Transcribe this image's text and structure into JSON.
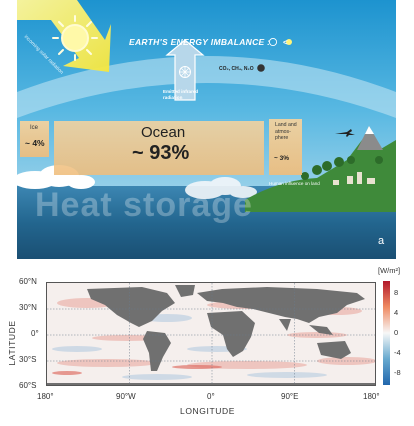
{
  "illustration": {
    "sun_text": "incoming solar radiation",
    "imbalance_title": "EARTH'S ENERGY IMBALANCE :",
    "imbalance_sign": "<",
    "emitted_label": "Emitted infrared radiation",
    "gases": "CO₂, CH₄, N₂O",
    "ice": {
      "label": "Ice",
      "percent": "~ 4%"
    },
    "ocean": {
      "label": "Ocean",
      "percent": "~ 93%"
    },
    "land": {
      "label": "Land and atmos-phere",
      "percent": "~ 3%"
    },
    "human_influence": "Human influence on land",
    "heat_storage": "Heat storage",
    "panel_letter": "a",
    "colors": {
      "sky": "#2aa6d8",
      "ocean_deep": "#1d5c86",
      "storage_fill": "#f3c98f",
      "sun": "#fff27a"
    }
  },
  "map": {
    "y_axis_label": "LATITUDE",
    "x_axis_label": "LONGITUDE",
    "y_ticks": [
      "60°N",
      "30°N",
      "0°",
      "30°S",
      "60°S"
    ],
    "x_ticks": [
      "180°",
      "90°W",
      "0°",
      "90°E",
      "180°"
    ],
    "colorbar": {
      "unit": "[W/m²]",
      "ticks": [
        "8",
        "4",
        "0",
        "-4",
        "-8"
      ],
      "range": [
        -10,
        10
      ],
      "colors": {
        "positive": "#b2182b",
        "neutral": "#f7f7f7",
        "negative": "#2166ac"
      }
    },
    "colors": {
      "land": "#707070"
    }
  }
}
